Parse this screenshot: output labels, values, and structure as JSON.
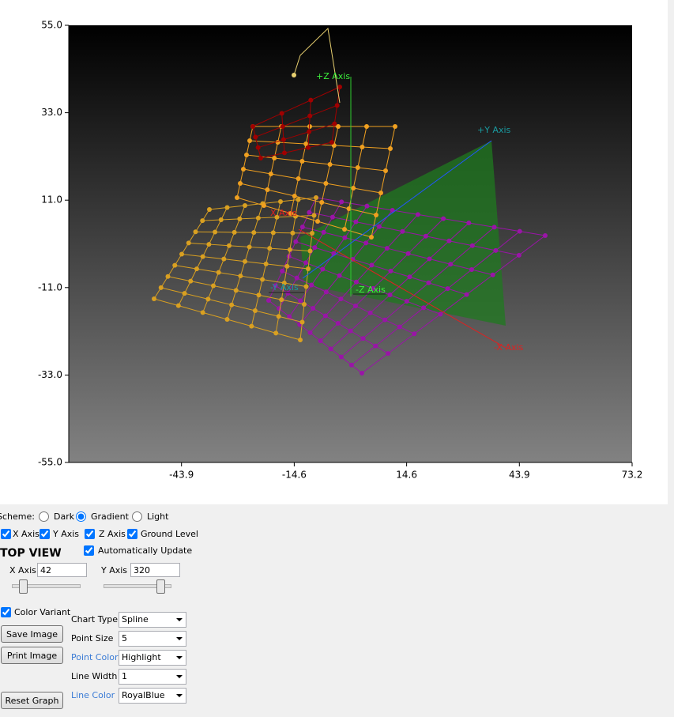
{
  "chart_data": {
    "type": "3d-line",
    "xlim": [
      -73.2,
      73.2
    ],
    "xticks": [
      -43.9,
      -14.6,
      14.6,
      43.9,
      73.2
    ],
    "ylim": [
      -55,
      55
    ],
    "yticks": [
      {
        "value": -55,
        "label": "-55.0"
      },
      {
        "value": -33,
        "label": "-33.0"
      },
      {
        "value": -11,
        "label": "-11.0"
      },
      {
        "value": 11,
        "label": "11.0"
      },
      {
        "value": 33,
        "label": "33.0"
      },
      {
        "value": 55,
        "label": "55.0"
      }
    ],
    "axis_labels": [
      "+Z Axis",
      "+Y Axis",
      "X Axis",
      "-X Axis",
      "-Y Axis",
      "-Z Axis"
    ]
  },
  "controls": {
    "scheme": {
      "label": "Scheme:",
      "options": [
        {
          "label": "Dark",
          "checked": false
        },
        {
          "label": "Gradient",
          "checked": true
        },
        {
          "label": "Light",
          "checked": false
        }
      ]
    },
    "toggles": [
      {
        "label": "X Axis",
        "checked": true
      },
      {
        "label": "Y Axis",
        "checked": true
      },
      {
        "label": "Z Axis",
        "checked": true
      },
      {
        "label": "Ground Level",
        "checked": true
      }
    ],
    "top_view": {
      "title": "TOP VIEW",
      "auto_update": {
        "label": "Automatically Update",
        "checked": true
      },
      "x_axis": {
        "label": "X Axis",
        "value": 42
      },
      "y_axis": {
        "label": "Y Axis",
        "value": 320
      }
    },
    "color_variant": {
      "label": "Color Variant",
      "checked": true
    },
    "buttons": [
      "Save Image",
      "Print Image",
      "Reset Graph"
    ],
    "settings": [
      {
        "label": "Chart Type",
        "value": "Spline"
      },
      {
        "label": "Point Size",
        "value": 5
      },
      {
        "label": "Point Color",
        "value": "Highlight"
      },
      {
        "label": "Line Width",
        "value": 1
      },
      {
        "label": "Line Color",
        "value": "RoyalBlue"
      }
    ]
  }
}
